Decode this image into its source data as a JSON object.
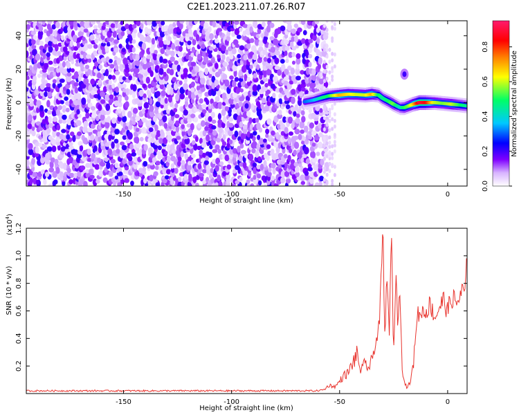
{
  "figure_title": "C2E1.2023.211.07.26.R07",
  "chart_data": [
    {
      "type": "heatmap",
      "title": "C2E1.2023.211.07.26.R07",
      "xlabel": "Height of straight line (km)",
      "ylabel": "Frequency (Hz)",
      "xlim": [
        -195,
        9
      ],
      "ylim": [
        -50,
        49
      ],
      "x_ticks": [
        -150,
        -100,
        -50,
        0
      ],
      "x_tick_labels": [
        "-150",
        "-100",
        "-50",
        "0"
      ],
      "y_ticks": [
        -40,
        -20,
        0,
        20,
        40
      ],
      "y_tick_labels": [
        "-40",
        "-20",
        "0",
        "20",
        "40"
      ],
      "colorbar": {
        "label": "Normalized spectral amplitude",
        "range": [
          0,
          0.95
        ],
        "ticks": [
          0.0,
          0.2,
          0.4,
          0.6,
          0.8
        ],
        "tick_labels": [
          "0.0",
          "0.2",
          "0.4",
          "0.6",
          "0.8"
        ],
        "colors": [
          "#ffffff",
          "#d8b4ff",
          "#7f00ff",
          "#0000ff",
          "#00c8ff",
          "#00ff66",
          "#ffff00",
          "#ff7f00",
          "#ff0000",
          "#ff1a6e"
        ]
      },
      "noise_region_x": [
        -195,
        -57
      ],
      "noise_level": 0.15,
      "ridge": {
        "x": [
          -66,
          -62,
          -58,
          -55,
          -50,
          -46,
          -42,
          -38,
          -35,
          -32,
          -30,
          -27,
          -25,
          -22,
          -20,
          -18,
          -16,
          -13,
          -10,
          -6,
          -2,
          2,
          6,
          9
        ],
        "freq": [
          0.5,
          1.5,
          3,
          4,
          4.5,
          5,
          4.8,
          4.5,
          5,
          4.5,
          2.5,
          0.5,
          -1,
          -3,
          -3,
          -2,
          -1,
          0,
          0,
          0,
          -0.5,
          -1,
          -1.5,
          -2
        ],
        "amplitude": [
          0.3,
          0.35,
          0.45,
          0.5,
          0.7,
          0.65,
          0.6,
          0.6,
          0.7,
          0.5,
          0.45,
          0.5,
          0.55,
          0.4,
          0.5,
          0.55,
          0.65,
          0.9,
          0.85,
          0.6,
          0.55,
          0.6,
          0.5,
          0.45
        ]
      },
      "features": [
        {
          "x": -93,
          "freq": -2,
          "amplitude": 0.2
        },
        {
          "x": -20,
          "freq": 17,
          "amplitude": 0.2
        }
      ]
    },
    {
      "type": "line",
      "xlabel": "Height of straight line (km)",
      "ylabel": "SNR (10 * v/v)",
      "y_multiplier": "(x10",
      "y_multiplier_exp": "4",
      "y_multiplier_close": ")",
      "xlim": [
        -195,
        9
      ],
      "ylim": [
        0,
        1.2
      ],
      "x_ticks": [
        -150,
        -100,
        -50,
        0
      ],
      "x_tick_labels": [
        "-150",
        "-100",
        "-50",
        "0"
      ],
      "y_ticks": [
        0.2,
        0.4,
        0.6,
        0.8,
        1.0,
        1.2
      ],
      "y_tick_labels": [
        "0.2",
        "0.4",
        "0.6",
        "0.8",
        "1.0",
        "1.2"
      ],
      "color": "#e8322c",
      "baseline": 0.02,
      "x": [
        -195,
        -60,
        -57,
        -55,
        -52,
        -50,
        -48,
        -46,
        -44,
        -42,
        -40,
        -38,
        -36,
        -34,
        -32,
        -31,
        -30,
        -29,
        -28,
        -27,
        -26,
        -25,
        -24,
        -23,
        -22,
        -21,
        -20,
        -19,
        -18,
        -17,
        -16,
        -15,
        -14,
        -13,
        -12,
        -11,
        -10,
        -8,
        -6,
        -4,
        -2,
        0,
        2,
        4,
        6,
        8,
        9
      ],
      "values": [
        0.02,
        0.02,
        0.03,
        0.06,
        0.05,
        0.09,
        0.13,
        0.15,
        0.22,
        0.28,
        0.16,
        0.22,
        0.18,
        0.32,
        0.45,
        0.7,
        1.2,
        0.35,
        0.95,
        0.4,
        1.16,
        0.25,
        0.9,
        0.5,
        0.75,
        0.2,
        0.08,
        0.05,
        0.06,
        0.1,
        0.2,
        0.4,
        0.6,
        0.55,
        0.62,
        0.58,
        0.6,
        0.65,
        0.55,
        0.62,
        0.68,
        0.6,
        0.7,
        0.65,
        0.72,
        0.75,
        0.95
      ]
    }
  ]
}
